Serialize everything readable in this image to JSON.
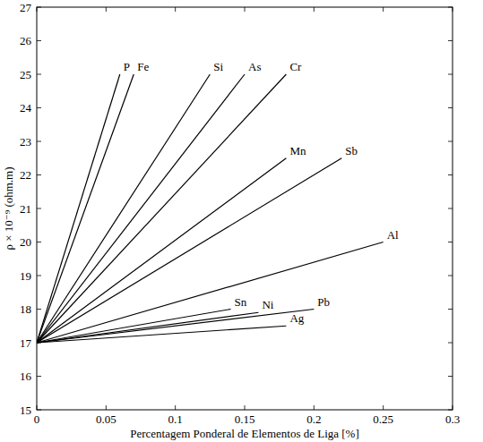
{
  "chart_data": {
    "type": "line",
    "x_label": "Percentagem Ponderal de Elementos de Liga [%]",
    "y_label": "ρ × 10⁻⁹ (ohm.m)",
    "color": "#000000",
    "xlim": [
      0,
      0.3
    ],
    "xticks": [
      0,
      0.05,
      0.1,
      0.15,
      0.2,
      0.25,
      0.3
    ],
    "ylim": [
      15,
      27
    ],
    "yticks": [
      15,
      16,
      17,
      18,
      19,
      20,
      21,
      22,
      23,
      24,
      25,
      26,
      27
    ],
    "grid": false,
    "series": [
      {
        "name": "P",
        "x": [
          0,
          0.06
        ],
        "values": [
          17,
          25
        ]
      },
      {
        "name": "Fe",
        "x": [
          0,
          0.07
        ],
        "values": [
          17,
          25
        ]
      },
      {
        "name": "Si",
        "x": [
          0,
          0.125
        ],
        "values": [
          17,
          25
        ]
      },
      {
        "name": "As",
        "x": [
          0,
          0.15
        ],
        "values": [
          17,
          25
        ]
      },
      {
        "name": "Cr",
        "x": [
          0,
          0.18
        ],
        "values": [
          17,
          25
        ]
      },
      {
        "name": "Mn",
        "x": [
          0,
          0.18
        ],
        "values": [
          17,
          22.5
        ]
      },
      {
        "name": "Sb",
        "x": [
          0,
          0.22
        ],
        "values": [
          17,
          22.5
        ]
      },
      {
        "name": "Al",
        "x": [
          0,
          0.25
        ],
        "values": [
          17,
          20
        ]
      },
      {
        "name": "Sn",
        "x": [
          0,
          0.14
        ],
        "values": [
          17,
          18
        ]
      },
      {
        "name": "Ni",
        "x": [
          0,
          0.16
        ],
        "values": [
          17,
          17.9
        ]
      },
      {
        "name": "Pb",
        "x": [
          0,
          0.2
        ],
        "values": [
          17,
          18
        ]
      },
      {
        "name": "Ag",
        "x": [
          0,
          0.18
        ],
        "values": [
          17,
          17.5
        ]
      }
    ]
  }
}
